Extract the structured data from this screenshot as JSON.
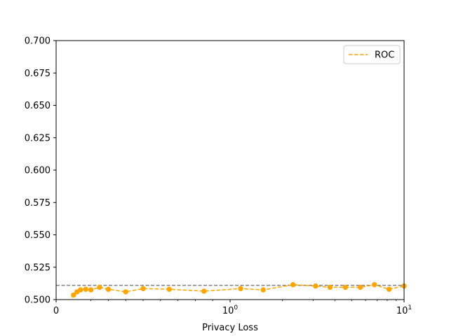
{
  "chart_data": {
    "type": "line",
    "title": "",
    "xlabel": "Privacy Loss",
    "ylabel": "",
    "xscale": "symlog",
    "xlim": [
      0,
      10
    ],
    "ylim": [
      0.5,
      0.7
    ],
    "xticks": [
      {
        "value": 0,
        "label": "0"
      },
      {
        "value": 1,
        "label": "10^0"
      },
      {
        "value": 10,
        "label": "10^1"
      }
    ],
    "yticks": [
      {
        "value": 0.7,
        "label": "0.700"
      },
      {
        "value": 0.675,
        "label": "0.675"
      },
      {
        "value": 0.65,
        "label": "0.650"
      },
      {
        "value": 0.625,
        "label": "0.625"
      },
      {
        "value": 0.6,
        "label": "0.600"
      },
      {
        "value": 0.575,
        "label": "0.575"
      },
      {
        "value": 0.55,
        "label": "0.550"
      },
      {
        "value": 0.525,
        "label": "0.525"
      },
      {
        "value": 0.5,
        "label": "0.500"
      }
    ],
    "grid": false,
    "legend_position": "top-right",
    "series": [
      {
        "name": "ROC",
        "color": "#FFA500",
        "line_style": "dashed",
        "marker": "circle",
        "x": [
          0.1,
          0.12,
          0.14,
          0.17,
          0.2,
          0.25,
          0.3,
          0.4,
          0.5,
          0.65,
          0.85,
          1.15,
          1.55,
          2.3,
          3.1,
          3.75,
          4.6,
          5.6,
          6.75,
          8.2,
          10.0
        ],
        "y": [
          0.5035,
          0.506,
          0.5075,
          0.508,
          0.5075,
          0.5095,
          0.508,
          0.506,
          0.5085,
          0.508,
          0.5065,
          0.5085,
          0.5075,
          0.5115,
          0.5105,
          0.5095,
          0.5095,
          0.5095,
          0.5115,
          0.508,
          0.5105
        ]
      }
    ],
    "reference_lines": [
      {
        "orientation": "horizontal",
        "y": 0.511,
        "color": "#808080",
        "line_style": "dashed"
      }
    ]
  }
}
